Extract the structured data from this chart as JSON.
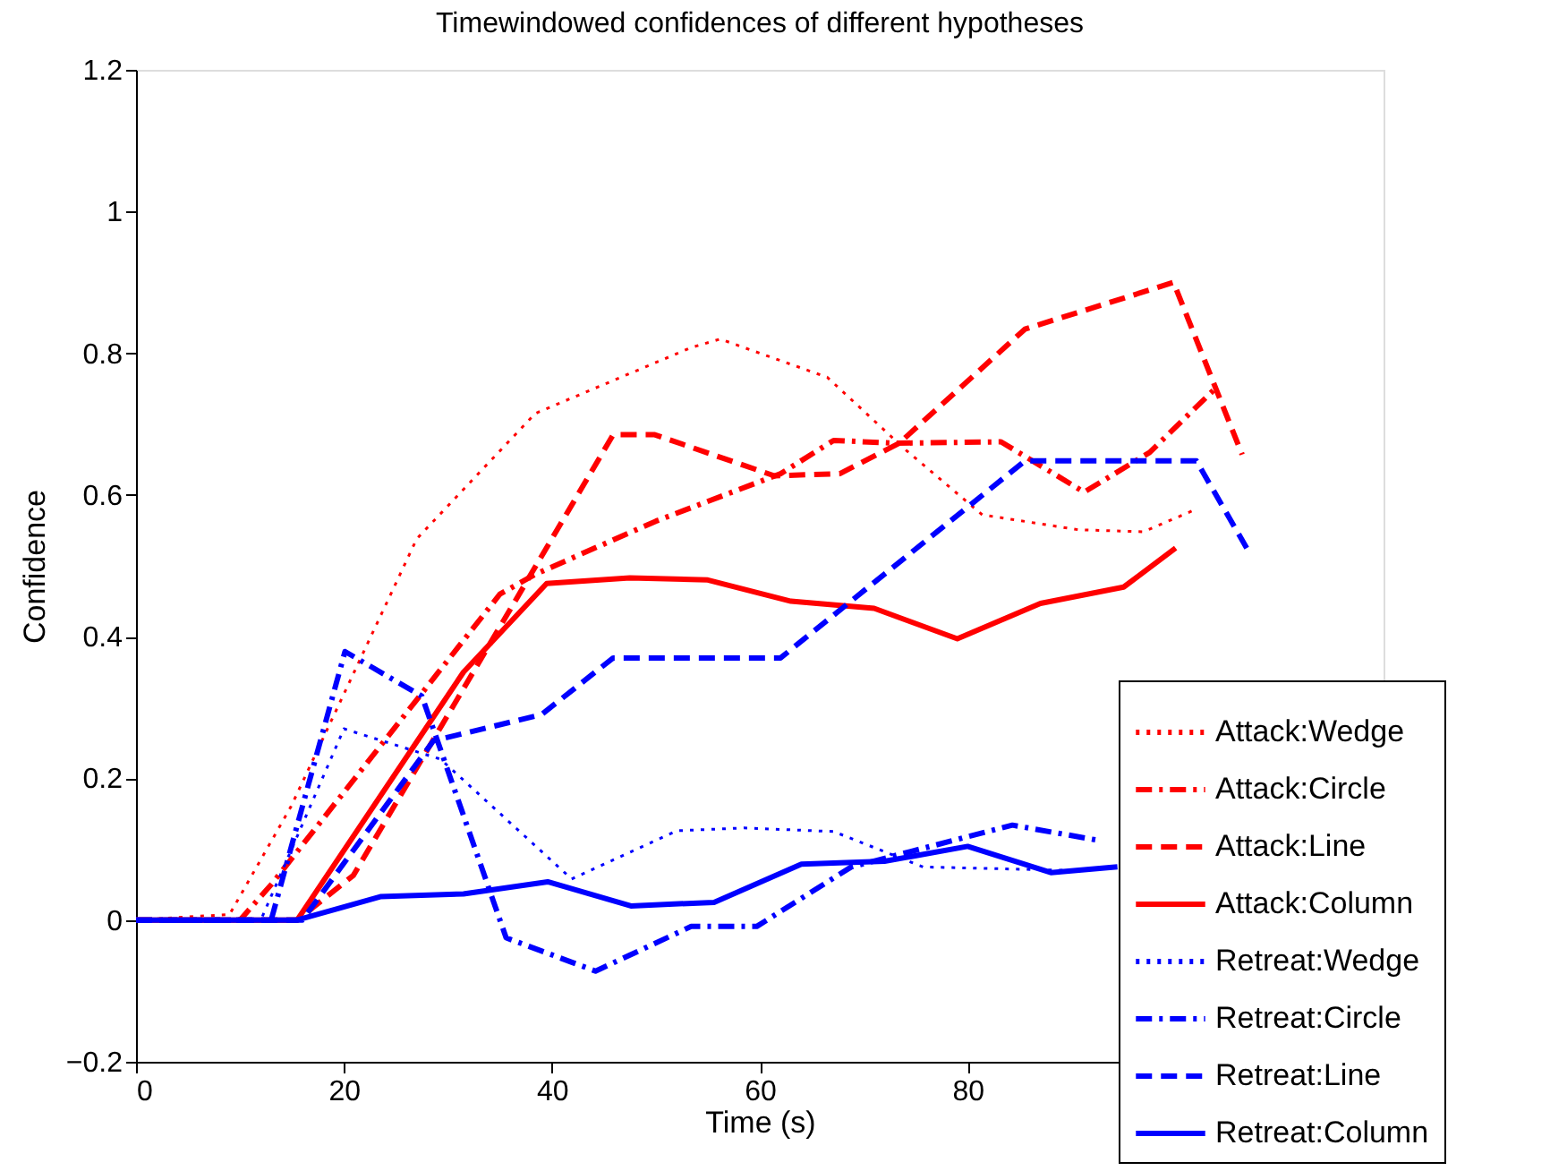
{
  "chart_data": {
    "type": "line",
    "title": "Timewindowed confidences of different hypotheses",
    "xlabel": "Time (s)",
    "ylabel": "Confidence",
    "xlim": [
      0,
      120
    ],
    "xticks": [
      0,
      20,
      40,
      60,
      80
    ],
    "ylim": [
      -0.2,
      1.2
    ],
    "yticks": [
      {
        "value": -0.2,
        "label": "−0.2"
      },
      0,
      0.2,
      0.4,
      0.6,
      0.8,
      1,
      1.2
    ],
    "grid": false,
    "legend": "bottom right",
    "marker": "none",
    "series": [
      {
        "name": "Attack:Wedge",
        "color": "#ff0000",
        "line_style": "dotted",
        "x": [
          0,
          9,
          14.9,
          27,
          38.4,
          53.4,
          56.2,
          66.5,
          74,
          81.4,
          90.6,
          96.9,
          102
        ],
        "values": [
          0,
          0.008,
          0.16,
          0.538,
          0.715,
          0.808,
          0.82,
          0.766,
          0.664,
          0.572,
          0.551,
          0.548,
          0.58
        ]
      },
      {
        "name": "Attack:Circle",
        "color": "#ff0000",
        "line_style": "dashdot",
        "x": [
          0,
          10,
          13,
          35,
          38.4,
          50,
          62,
          67.1,
          73.1,
          83.2,
          91.2,
          97.5,
          103.8
        ],
        "values": [
          0,
          0,
          0.05,
          0.46,
          0.488,
          0.563,
          0.63,
          0.677,
          0.673,
          0.675,
          0.604,
          0.66,
          0.75
        ]
      },
      {
        "name": "Attack:Line",
        "color": "#ff0000",
        "line_style": "dashed",
        "x": [
          0,
          15.5,
          20.9,
          45.9,
          49.9,
          61.4,
          67.7,
          73.4,
          85.5,
          99.8,
          106.4
        ],
        "values": [
          0,
          0,
          0.063,
          0.685,
          0.685,
          0.627,
          0.63,
          0.673,
          0.834,
          0.9,
          0.657
        ]
      },
      {
        "name": "Attack:Column",
        "color": "#ff0000",
        "line_style": "solid",
        "x": [
          0,
          15.5,
          31.5,
          39.5,
          47.5,
          55,
          63,
          71,
          79,
          87,
          95,
          100
        ],
        "values": [
          0,
          0,
          0.35,
          0.475,
          0.483,
          0.48,
          0.45,
          0.44,
          0.397,
          0.447,
          0.47,
          0.525
        ]
      },
      {
        "name": "Retreat:Wedge",
        "color": "#0000ff",
        "line_style": "dotted",
        "x": [
          0,
          12,
          20,
          29.3,
          41.9,
          52,
          58.5,
          67.1,
          75.7,
          90,
          94
        ],
        "values": [
          0,
          0,
          0.27,
          0.227,
          0.058,
          0.126,
          0.13,
          0.125,
          0.075,
          0.07,
          0.075
        ]
      },
      {
        "name": "Retreat:Circle",
        "color": "#0000ff",
        "line_style": "dashdot",
        "x": [
          0,
          13,
          20.1,
          27.5,
          35.6,
          44.2,
          53.4,
          59.7,
          68.8,
          84.3,
          92.4
        ],
        "values": [
          0,
          0,
          0.379,
          0.316,
          -0.025,
          -0.072,
          -0.009,
          -0.009,
          0.075,
          0.134,
          0.113
        ]
      },
      {
        "name": "Retreat:Line",
        "color": "#0000ff",
        "line_style": "dashed",
        "x": [
          0,
          16,
          28.6,
          39,
          45.9,
          53.4,
          62,
          85.5,
          102,
          107
        ],
        "values": [
          0,
          0,
          0.253,
          0.29,
          0.37,
          0.37,
          0.37,
          0.648,
          0.648,
          0.521
        ]
      },
      {
        "name": "Retreat:Column",
        "color": "#0000ff",
        "line_style": "solid",
        "x": [
          0,
          15.5,
          23.5,
          31.5,
          39.6,
          47.6,
          55.6,
          64,
          72,
          80,
          88,
          94.4
        ],
        "values": [
          0,
          0,
          0.033,
          0.037,
          0.054,
          0.02,
          0.025,
          0.079,
          0.083,
          0.104,
          0.067,
          0.075
        ]
      }
    ]
  }
}
